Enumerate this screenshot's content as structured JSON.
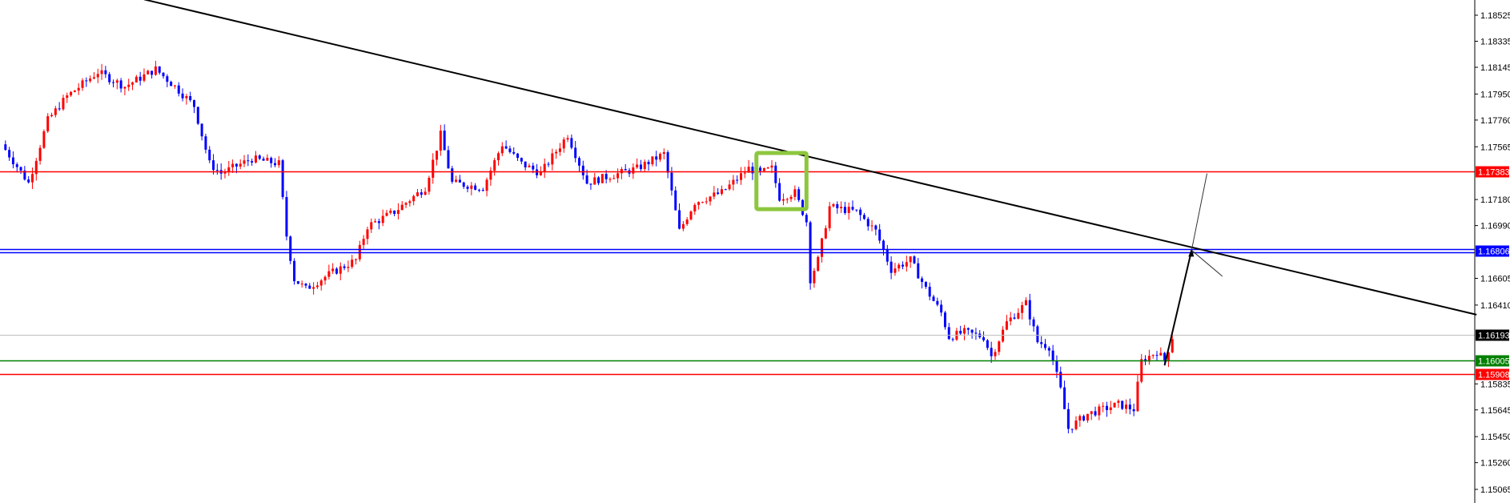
{
  "chart_data": {
    "type": "candlestick",
    "title": "",
    "xlabel": "",
    "ylabel": "",
    "ylim": [
      1.1497,
      1.1865
    ],
    "grid": false,
    "colors": {
      "up": "#ff0000",
      "down": "#0000ff",
      "trendline": "#000000",
      "highlight_box": "#8dc63f",
      "axis": "#000000"
    },
    "y_ticks": [
      "1.18525",
      "1.18335",
      "1.18145",
      "1.17950",
      "1.17760",
      "1.17565",
      "1.17180",
      "1.16990",
      "1.16605",
      "1.16410",
      "1.15835",
      "1.15645",
      "1.15450",
      "1.15260",
      "1.15065"
    ],
    "close_path_bar_price": [
      [
        0,
        1.17583
      ],
      [
        7,
        1.17302
      ],
      [
        12,
        1.17759
      ],
      [
        17,
        1.17934
      ],
      [
        25,
        1.1811
      ],
      [
        32,
        1.18005
      ],
      [
        40,
        1.18131
      ],
      [
        45,
        1.18005
      ],
      [
        50,
        1.17864
      ],
      [
        54,
        1.17442
      ],
      [
        57,
        1.17372
      ],
      [
        65,
        1.17477
      ],
      [
        72,
        1.17442
      ],
      [
        74,
        1.16915
      ],
      [
        76,
        1.16599
      ],
      [
        79,
        1.16528
      ],
      [
        85,
        1.16634
      ],
      [
        92,
        1.16739
      ],
      [
        95,
        1.16985
      ],
      [
        102,
        1.17091
      ],
      [
        110,
        1.17267
      ],
      [
        114,
        1.17653
      ],
      [
        117,
        1.17302
      ],
      [
        125,
        1.17267
      ],
      [
        130,
        1.17583
      ],
      [
        135,
        1.17442
      ],
      [
        140,
        1.17372
      ],
      [
        147,
        1.17653
      ],
      [
        152,
        1.17302
      ],
      [
        156,
        1.17337
      ],
      [
        165,
        1.17407
      ],
      [
        172,
        1.17513
      ],
      [
        176,
        1.1695
      ],
      [
        180,
        1.17161
      ],
      [
        187,
        1.17231
      ],
      [
        194,
        1.17407
      ],
      [
        197,
        1.17372
      ],
      [
        200,
        1.17407
      ],
      [
        202,
        1.17196
      ],
      [
        206,
        1.17231
      ],
      [
        209,
        1.1702
      ],
      [
        210,
        1.16599
      ],
      [
        212,
        1.16739
      ],
      [
        215,
        1.17126
      ],
      [
        222,
        1.17091
      ],
      [
        227,
        1.1695
      ],
      [
        231,
        1.16669
      ],
      [
        236,
        1.16739
      ],
      [
        240,
        1.16528
      ],
      [
        244,
        1.16353
      ],
      [
        246,
        1.16177
      ],
      [
        250,
        1.16212
      ],
      [
        255,
        1.16177
      ],
      [
        257,
        1.16036
      ],
      [
        261,
        1.16283
      ],
      [
        266,
        1.16423
      ],
      [
        269,
        1.16142
      ],
      [
        272,
        1.16107
      ],
      [
        275,
        1.15791
      ],
      [
        277,
        1.15509
      ],
      [
        282,
        1.15615
      ],
      [
        290,
        1.15685
      ],
      [
        294,
        1.1565
      ],
      [
        296,
        1.16001
      ],
      [
        300,
        1.16072
      ],
      [
        302,
        1.16001
      ],
      [
        304,
        1.16177
      ]
    ],
    "horizontal_levels": [
      {
        "price": "1.17383",
        "color": "#ff0000"
      },
      {
        "price": "1.16806",
        "color": "#0000ff",
        "double": true
      },
      {
        "price": "1.16193",
        "color": "#000000",
        "line_color": "#c0c0c0"
      },
      {
        "price": "1.16005",
        "color": "#008000"
      },
      {
        "price": "1.15908",
        "color": "#ff0000"
      }
    ],
    "trendline": {
      "from": [
        37,
        1.1864
      ],
      "to": [
        383,
        1.1634
      ]
    },
    "projection_arrows": {
      "start": [
        302,
        1.1597
      ],
      "pivot": [
        309,
        1.1681
      ],
      "up_target": [
        313,
        1.1737
      ],
      "down_target": [
        317,
        1.1662
      ]
    },
    "highlight_box": {
      "from_bar": 196,
      "to_bar": 209,
      "top_price": 1.1752,
      "bottom_price": 1.1711
    }
  }
}
